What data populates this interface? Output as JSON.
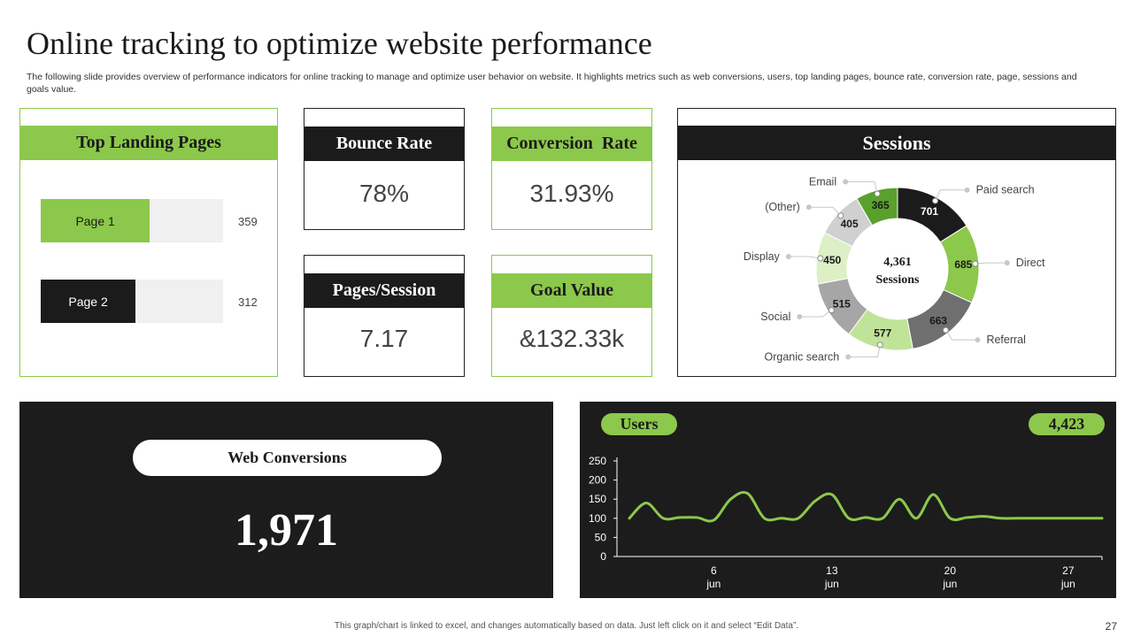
{
  "header": {
    "title": "Online tracking to optimize website performance",
    "subtitle": "The following slide provides overview of performance indicators for online tracking to manage and optimize user behavior on website. It highlights metrics such as web conversions, users, top landing pages, bounce rate, conversion rate, page, sessions and goals value."
  },
  "landing_pages": {
    "title": "Top Landing Pages",
    "pages": [
      {
        "label": "Page 1",
        "value": 359,
        "value_text": "359",
        "color": "#8cc84b"
      },
      {
        "label": "Page 2",
        "value": 312,
        "value_text": "312",
        "color": "#1b1b1b"
      }
    ]
  },
  "kpis": {
    "bounce_rate": {
      "label": "Bounce Rate",
      "value": "78%"
    },
    "conversion_rate": {
      "label": "Conversion  Rate",
      "value": "31.93%"
    },
    "pages_session": {
      "label": "Pages/Session",
      "value": "7.17"
    },
    "goal_value": {
      "label": "Goal Value",
      "value": "&132.33k"
    }
  },
  "sessions": {
    "title": "Sessions",
    "center_value": "4,361",
    "center_label": "Sessions"
  },
  "web_conversions": {
    "label": "Web Conversions",
    "value": "1,971"
  },
  "users": {
    "label": "Users",
    "total": "4,423"
  },
  "footer": {
    "note": "This graph/chart is linked to excel, and changes automatically based on data. Just left click on it and select “Edit Data”.",
    "page_number": "27"
  },
  "colors": {
    "accent_green": "#8cc84b",
    "dark": "#1b1b1b",
    "panel": "#1c1c1c"
  },
  "chart_data": [
    {
      "type": "pie",
      "variant": "donut",
      "title": "Sessions",
      "categories": [
        "Paid search",
        "Direct",
        "Referral",
        "Organic search",
        "Social",
        "Display",
        "(Other)",
        "Email"
      ],
      "values": [
        701,
        685,
        663,
        577,
        515,
        450,
        405,
        365
      ],
      "colors": [
        "#1b1b1b",
        "#8cc84b",
        "#6f6f6f",
        "#c0e39a",
        "#a6a6a6",
        "#dcefc6",
        "#d0d0d0",
        "#5aa02c"
      ],
      "label_colors": [
        "#ffffff",
        "#1b1b1b",
        "#1b1b1b",
        "#1b1b1b",
        "#1b1b1b",
        "#1b1b1b",
        "#1b1b1b",
        "#1b1b1b"
      ],
      "total": "4,361"
    },
    {
      "type": "line",
      "title": "Users",
      "x": [
        1,
        2,
        3,
        4,
        5,
        6,
        7,
        8,
        9,
        10,
        11,
        12,
        13,
        14,
        15,
        16,
        17,
        18,
        19,
        20,
        21,
        22,
        23,
        24,
        25,
        26,
        27,
        28,
        29
      ],
      "series": [
        {
          "name": "Users",
          "values": [
            100,
            140,
            100,
            102,
            102,
            95,
            150,
            165,
            100,
            100,
            100,
            145,
            162,
            100,
            102,
            100,
            150,
            100,
            162,
            100,
            102,
            105,
            100,
            100,
            100,
            100,
            100,
            100,
            100
          ]
        }
      ],
      "x_tick_values": [
        6,
        13,
        20,
        27
      ],
      "x_tick_labels": [
        "6",
        "13",
        "20",
        "27"
      ],
      "x_tick_sublabel": "jun",
      "ylim": [
        0,
        250
      ],
      "y_ticks": [
        0,
        50,
        100,
        150,
        200,
        250
      ],
      "color": "#8cc84b"
    }
  ]
}
